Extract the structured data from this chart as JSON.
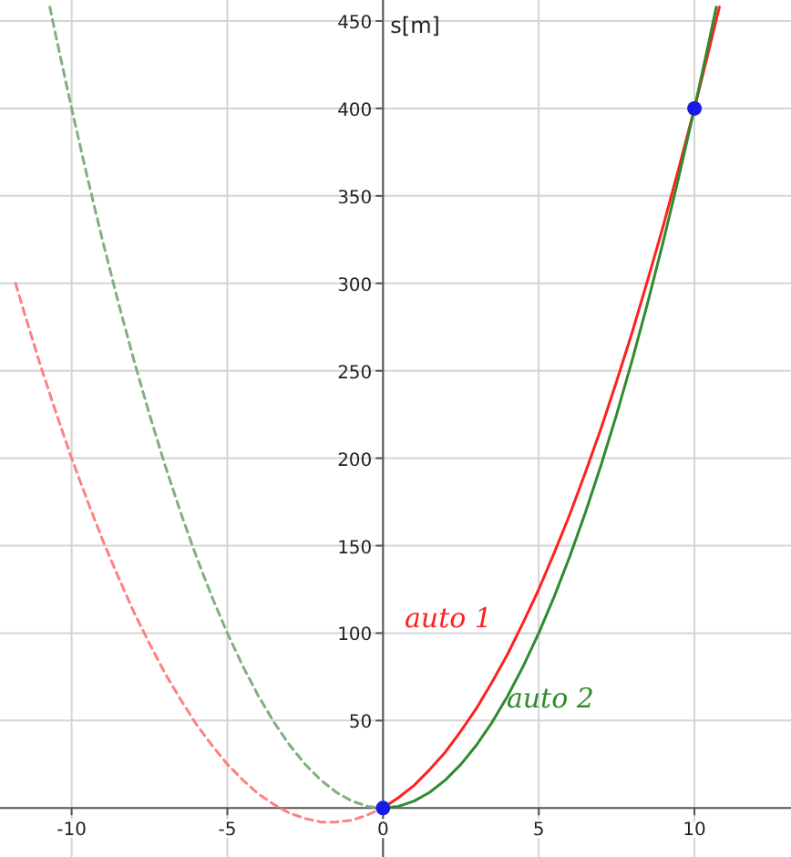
{
  "chart_data": {
    "type": "line",
    "ylabel": "s[m]",
    "xlim": [
      -12.3,
      13.1
    ],
    "ylim": [
      -28,
      462
    ],
    "xticks": [
      -10,
      -5,
      0,
      5,
      10
    ],
    "yticks": [
      50,
      100,
      150,
      200,
      250,
      300,
      350,
      400,
      450
    ],
    "grid": true,
    "marker": "none",
    "series": [
      {
        "name": "auto 1",
        "color": "#ff2020",
        "line_style": "solid",
        "x": [
          0,
          0.5,
          1,
          1.5,
          2,
          2.5,
          3,
          3.5,
          4,
          4.5,
          5,
          5.5,
          6,
          6.5,
          7,
          7.5,
          8,
          8.5,
          9,
          9.5,
          10,
          10.5,
          10.8
        ],
        "values": [
          0,
          6,
          13,
          22,
          32,
          44,
          57,
          72,
          88,
          106,
          125,
          146,
          168,
          192,
          217,
          244,
          272,
          302,
          333,
          366,
          400,
          436,
          458
        ]
      },
      {
        "name": "auto 2",
        "color": "#2e8b2e",
        "line_style": "solid",
        "x": [
          0,
          0.5,
          1,
          1.5,
          2,
          2.5,
          3,
          3.5,
          4,
          4.5,
          5,
          5.5,
          6,
          6.5,
          7,
          7.5,
          8,
          8.5,
          9,
          9.5,
          10,
          10.5,
          10.7
        ],
        "values": [
          0,
          1,
          4,
          9,
          16,
          25,
          36,
          49,
          64,
          81,
          100,
          121,
          144,
          169,
          196,
          225,
          256,
          289,
          324,
          361,
          400,
          441,
          458
        ]
      },
      {
        "color": "#ff8080",
        "line_style": "dashed",
        "x": [
          -11.8,
          -11.5,
          -11,
          -10.5,
          -10,
          -9.5,
          -9,
          -8.5,
          -8,
          -7.5,
          -7,
          -6.5,
          -6,
          -5.5,
          -5,
          -4.5,
          -4,
          -3.5,
          -3,
          -2.5,
          -2,
          -1.5,
          -1,
          -0.5,
          0
        ],
        "values": [
          300,
          282,
          253,
          226,
          200,
          176,
          153,
          132,
          112,
          94,
          77,
          62,
          48,
          36,
          25,
          16,
          8,
          2,
          -3,
          -6,
          -8,
          -8,
          -7,
          -4,
          0
        ]
      },
      {
        "color": "#80b080",
        "line_style": "dashed",
        "x": [
          -10.7,
          -10.5,
          -10,
          -9.5,
          -9,
          -8.5,
          -8,
          -7.5,
          -7,
          -6.5,
          -6,
          -5.5,
          -5,
          -4.5,
          -4,
          -3.5,
          -3,
          -2.5,
          -2,
          -1.5,
          -1,
          -0.5,
          0
        ],
        "values": [
          458,
          441,
          400,
          361,
          324,
          289,
          256,
          225,
          196,
          169,
          144,
          121,
          100,
          81,
          64,
          49,
          36,
          25,
          16,
          9,
          4,
          1,
          0
        ]
      },
      {
        "type": "scatter",
        "color": "#1a1ae6",
        "marker": "circle",
        "x": [
          0,
          10
        ],
        "values": [
          0,
          400
        ]
      }
    ]
  }
}
